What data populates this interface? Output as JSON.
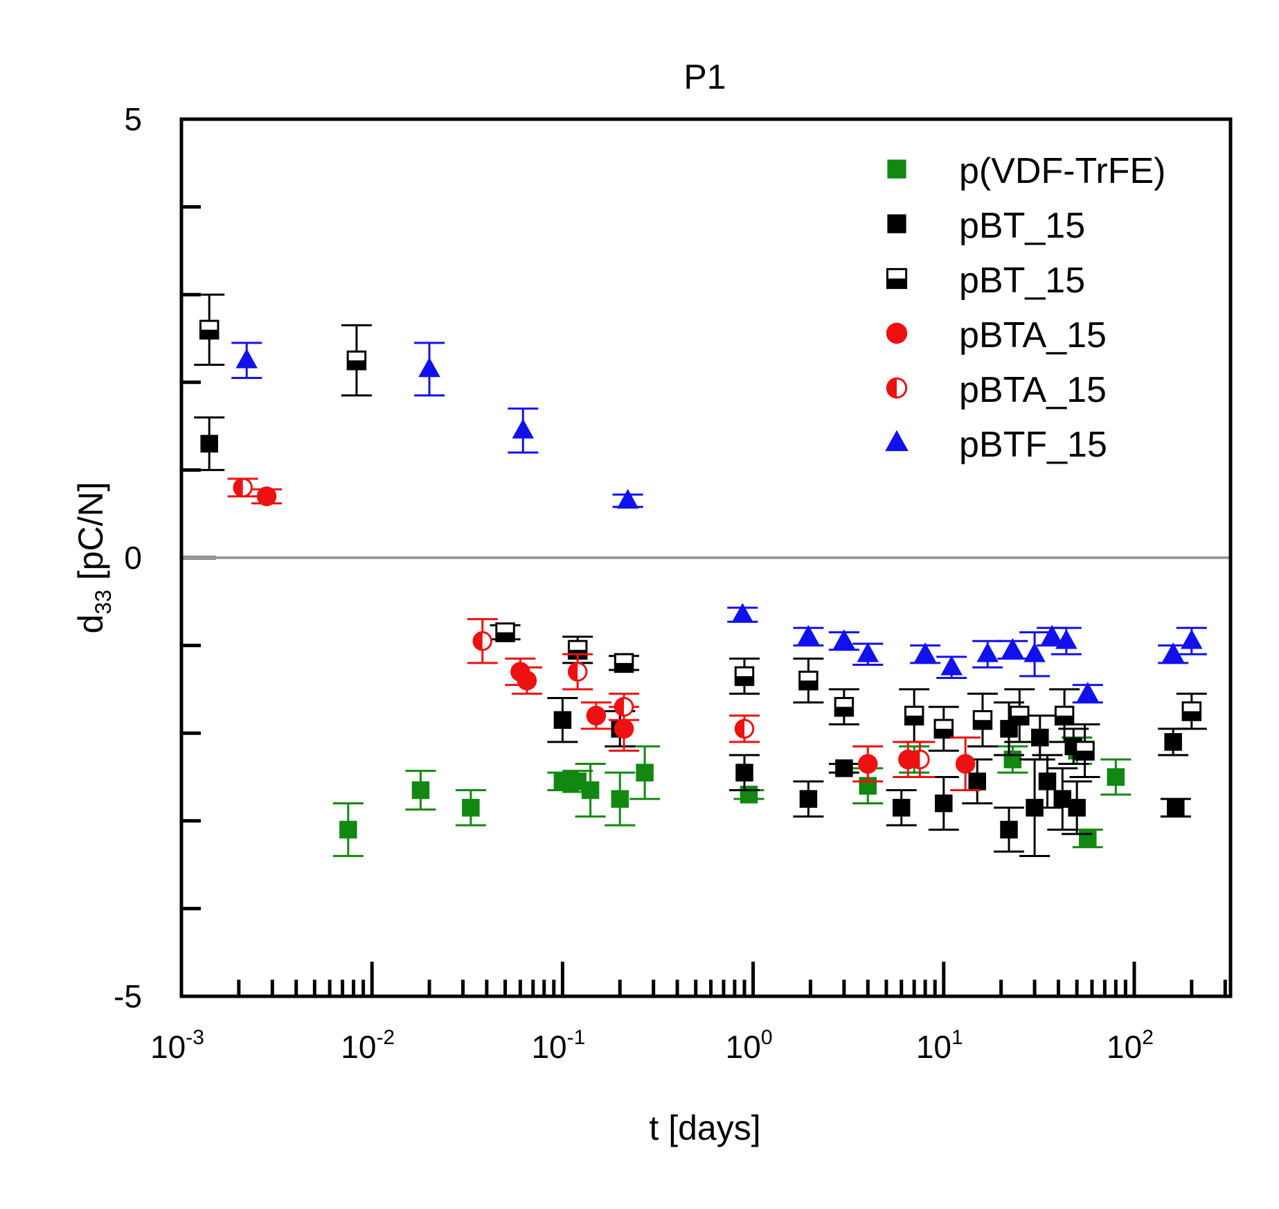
{
  "chart_data": {
    "type": "scatter",
    "title": "P1",
    "xlabel": "t [days]",
    "ylabel": {
      "main": "d",
      "sub": "33",
      "rest": " [pC/N]"
    },
    "x_scale": "log",
    "xlim": [
      0.001,
      320
    ],
    "ylim": [
      -5,
      5
    ],
    "x_tick_labels": [
      {
        "value": 0.001,
        "base": "10",
        "exp": "-3"
      },
      {
        "value": 0.01,
        "base": "10",
        "exp": "-2"
      },
      {
        "value": 0.1,
        "base": "10",
        "exp": "-1"
      },
      {
        "value": 1,
        "base": "10",
        "exp": "0"
      },
      {
        "value": 10,
        "base": "10",
        "exp": "1"
      },
      {
        "value": 100,
        "base": "10",
        "exp": "2"
      }
    ],
    "y_tick_labels": [
      {
        "value": 5,
        "label": "5"
      },
      {
        "value": 0,
        "label": "0"
      },
      {
        "value": -5,
        "label": "-5"
      }
    ],
    "zero_line": true,
    "grid": false,
    "legend_position": "top-right",
    "series": [
      {
        "name": "p(VDF-TrFE)",
        "marker": "square",
        "fill": "full",
        "color": "#118811",
        "points": [
          [
            0.0075,
            -3.1,
            0.3
          ],
          [
            0.018,
            -2.65,
            0.22
          ],
          [
            0.033,
            -2.85,
            0.2
          ],
          [
            0.1,
            -2.55,
            0.1
          ],
          [
            0.12,
            -2.55,
            0.12
          ],
          [
            0.14,
            -2.65,
            0.3
          ],
          [
            0.2,
            -2.75,
            0.3
          ],
          [
            0.27,
            -2.45,
            0.3
          ],
          [
            0.95,
            -2.7,
            0.05
          ],
          [
            4,
            -2.6,
            0.2
          ],
          [
            7,
            -2.3,
            0.15
          ],
          [
            23,
            -2.3,
            0.15
          ],
          [
            50,
            -2.2,
            0.15
          ],
          [
            57,
            -3.2,
            0.1
          ],
          [
            80,
            -2.5,
            0.2
          ]
        ]
      },
      {
        "name": "pBT_15",
        "marker": "square",
        "fill": "full",
        "color": "#000000",
        "points": [
          [
            0.0014,
            1.3,
            0.3
          ],
          [
            0.1,
            -1.85,
            0.25
          ],
          [
            0.2,
            -1.95,
            0.2
          ],
          [
            0.9,
            -2.45,
            0.2
          ],
          [
            1.95,
            -2.75,
            0.2
          ],
          [
            3,
            -2.4,
            0.05
          ],
          [
            6,
            -2.85,
            0.2
          ],
          [
            10,
            -2.8,
            0.3
          ],
          [
            15,
            -2.55,
            0.25
          ],
          [
            22,
            -3.1,
            0.25
          ],
          [
            30,
            -2.85,
            0.55
          ],
          [
            35,
            -2.55,
            0.3
          ],
          [
            42,
            -2.75,
            0.35
          ],
          [
            50,
            -2.85,
            0.3
          ],
          [
            165,
            -2.85,
            0.1
          ],
          [
            22,
            -1.95,
            0.3
          ],
          [
            32,
            -2.05,
            0.25
          ],
          [
            48,
            -2.15,
            0.2
          ],
          [
            160,
            -2.1,
            0.15
          ]
        ]
      },
      {
        "name": "pBT_15",
        "marker": "square",
        "fill": "half-bottom",
        "color": "#000000",
        "points": [
          [
            0.0014,
            2.6,
            0.4
          ],
          [
            0.0083,
            2.25,
            0.4
          ],
          [
            0.05,
            -0.85,
            0.08
          ],
          [
            0.12,
            -1.05,
            0.15
          ],
          [
            0.21,
            -1.2,
            0.08
          ],
          [
            0.9,
            -1.35,
            0.2
          ],
          [
            1.95,
            -1.4,
            0.25
          ],
          [
            3,
            -1.7,
            0.2
          ],
          [
            7,
            -1.8,
            0.3
          ],
          [
            10,
            -1.95,
            0.25
          ],
          [
            16,
            -1.85,
            0.3
          ],
          [
            25,
            -1.8,
            0.3
          ],
          [
            43,
            -1.8,
            0.3
          ],
          [
            55,
            -2.2,
            0.3
          ],
          [
            200,
            -1.75,
            0.2
          ]
        ]
      },
      {
        "name": "pBTA_15",
        "marker": "circle",
        "fill": "full",
        "color": "#ee1111",
        "points": [
          [
            0.0028,
            0.7,
            0.08
          ],
          [
            0.06,
            -1.3,
            0.15
          ],
          [
            0.065,
            -1.4,
            0.15
          ],
          [
            0.15,
            -1.8,
            0.15
          ],
          [
            0.21,
            -1.95,
            0.25
          ],
          [
            4,
            -2.35,
            0.2
          ],
          [
            6.5,
            -2.3,
            0.2
          ],
          [
            13,
            -2.35,
            0.3
          ]
        ]
      },
      {
        "name": "pBTA_15",
        "marker": "circle",
        "fill": "half-left",
        "color": "#ee1111",
        "points": [
          [
            0.0021,
            0.8,
            0.1
          ],
          [
            0.038,
            -0.95,
            0.25
          ],
          [
            0.12,
            -1.3,
            0.2
          ],
          [
            0.21,
            -1.7,
            0.15
          ],
          [
            0.9,
            -1.95,
            0.15
          ],
          [
            7.5,
            -2.3,
            0.2
          ]
        ]
      },
      {
        "name": "pBTF_15",
        "marker": "triangle",
        "fill": "full",
        "color": "#1111ee",
        "points": [
          [
            0.0022,
            2.25,
            0.2
          ],
          [
            0.02,
            2.15,
            0.3
          ],
          [
            0.062,
            1.45,
            0.25
          ],
          [
            0.22,
            0.65,
            0.07
          ],
          [
            0.88,
            -0.65,
            0.08
          ],
          [
            1.95,
            -0.9,
            0.1
          ],
          [
            3,
            -0.95,
            0.1
          ],
          [
            4,
            -1.1,
            0.12
          ],
          [
            8,
            -1.1,
            0.1
          ],
          [
            11,
            -1.25,
            0.12
          ],
          [
            17,
            -1.1,
            0.15
          ],
          [
            23,
            -1.05,
            0.1
          ],
          [
            30,
            -1.1,
            0.25
          ],
          [
            37,
            -0.9,
            0.1
          ],
          [
            44,
            -0.95,
            0.15
          ],
          [
            57,
            -1.55,
            0.1
          ],
          [
            160,
            -1.1,
            0.1
          ],
          [
            200,
            -0.95,
            0.15
          ]
        ]
      }
    ]
  }
}
